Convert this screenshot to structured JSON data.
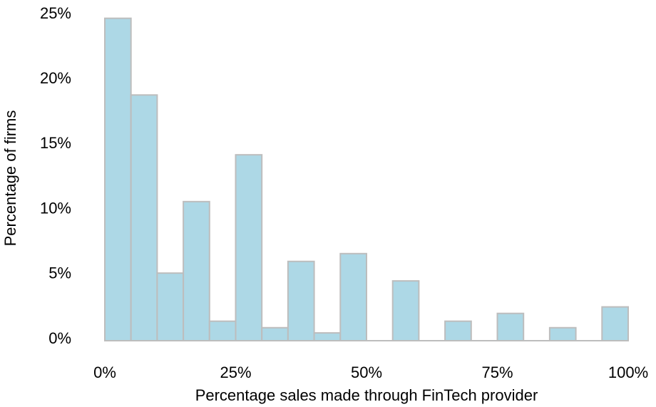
{
  "chart_data": {
    "type": "histogram",
    "xlabel": "Percentage sales made through FinTech provider",
    "ylabel": "Percentage of firms",
    "bins": [
      0,
      5,
      10,
      15,
      20,
      25,
      30,
      35,
      40,
      45,
      50,
      55,
      60,
      65,
      70,
      75,
      80,
      85,
      90,
      95,
      100
    ],
    "values": [
      24.8,
      18.9,
      5.2,
      10.7,
      1.5,
      14.3,
      1.0,
      6.1,
      0.6,
      6.7,
      0,
      4.6,
      0,
      1.5,
      0,
      2.1,
      0,
      1.0,
      0,
      2.6
    ],
    "color": "#add8e6",
    "edgecolor": "#bdbdbd",
    "xlim": [
      0,
      100
    ],
    "xticks": [
      {
        "value": 0,
        "label": "0%"
      },
      {
        "value": 25,
        "label": "25%"
      },
      {
        "value": 50,
        "label": "50%"
      },
      {
        "value": 75,
        "label": "75%"
      },
      {
        "value": 100,
        "label": "100%"
      }
    ],
    "ylim": [
      0,
      25
    ],
    "yticks": [
      {
        "value": 0,
        "label": "0%"
      },
      {
        "value": 5,
        "label": "5%"
      },
      {
        "value": 10,
        "label": "10%"
      },
      {
        "value": 15,
        "label": "15%"
      },
      {
        "value": 20,
        "label": "20%"
      },
      {
        "value": 25,
        "label": "25%"
      }
    ]
  }
}
